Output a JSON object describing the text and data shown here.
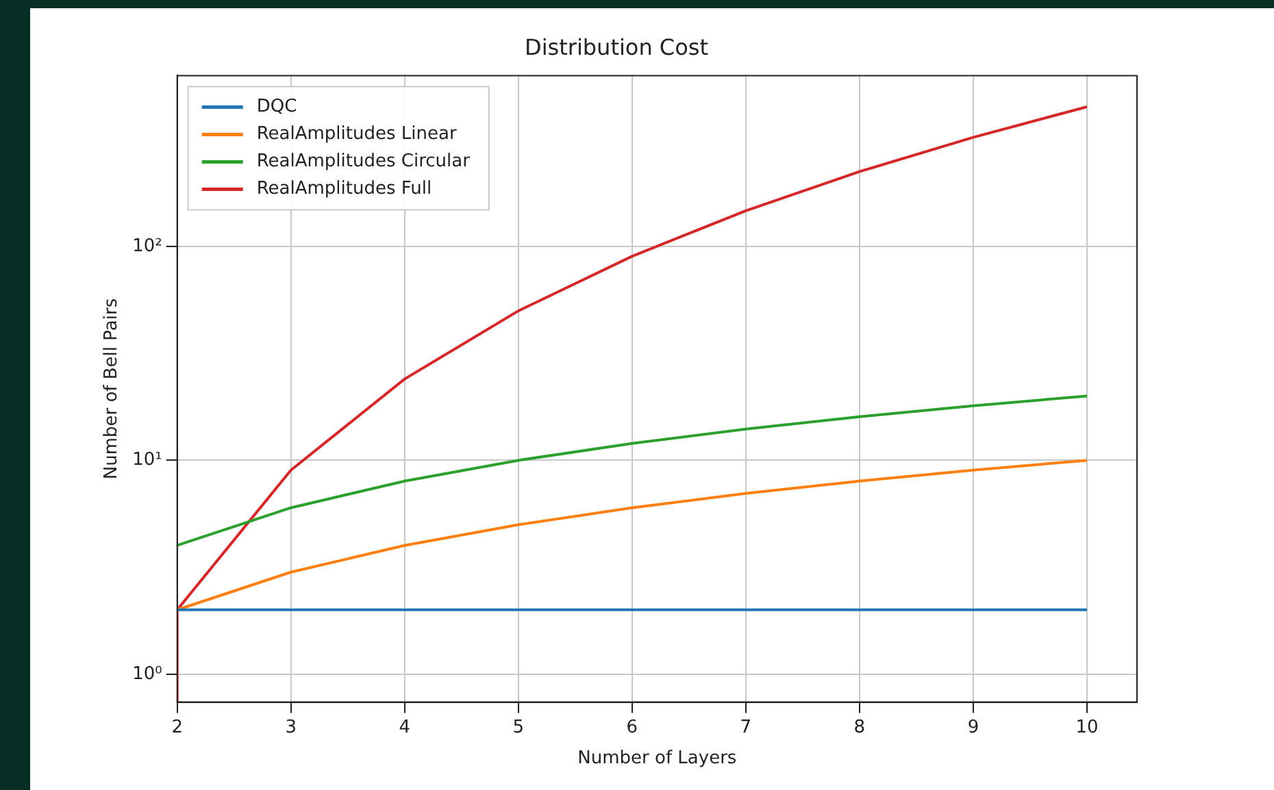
{
  "chart_data": {
    "type": "line",
    "title": "Distribution Cost",
    "xlabel": "Number of Layers",
    "ylabel": "Number of Bell Pairs",
    "x": [
      2,
      3,
      4,
      5,
      6,
      7,
      8,
      9,
      10
    ],
    "series": [
      {
        "name": "DQC",
        "color": "#1f77b4",
        "values": [
          2,
          2,
          2,
          2,
          2,
          2,
          2,
          2,
          2
        ]
      },
      {
        "name": "RealAmplitudes Linear",
        "color": "#ff7f0e",
        "values": [
          2,
          3,
          4,
          5,
          6,
          7,
          8,
          9,
          10
        ]
      },
      {
        "name": "RealAmplitudes Circular",
        "color": "#2ca02c",
        "values": [
          4,
          6,
          8,
          10,
          12,
          14,
          16,
          18,
          20
        ]
      },
      {
        "name": "RealAmplitudes Full",
        "color": "#d62728",
        "x": [
          2,
          2,
          3,
          4,
          5,
          6,
          7,
          8,
          9,
          10
        ],
        "values": [
          0.74,
          2,
          9,
          24,
          50,
          90,
          147,
          224,
          324,
          450
        ]
      }
    ],
    "log": "y",
    "xlim": [
      2,
      10.44
    ],
    "ylim": [
      0.74,
      630
    ],
    "xticks": [
      2,
      3,
      4,
      5,
      6,
      7,
      8,
      9,
      10
    ],
    "yticks": [
      {
        "value": 1,
        "label": "10⁰"
      },
      {
        "value": 10,
        "label": "10¹"
      },
      {
        "value": 100,
        "label": "10²"
      }
    ],
    "grid": true,
    "legend": "top left",
    "marker": "none",
    "line_style": "solid"
  }
}
